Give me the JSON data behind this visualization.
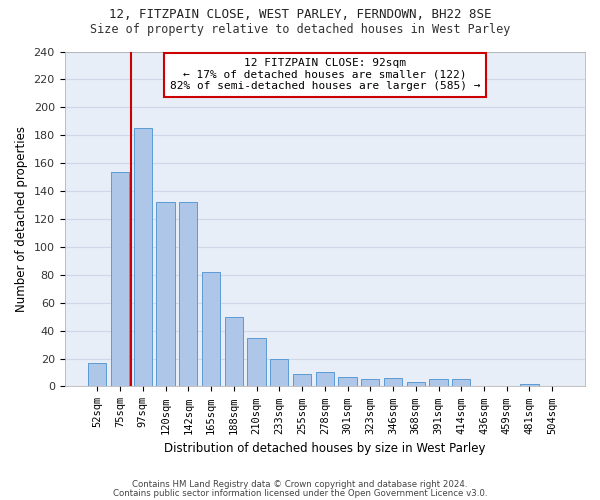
{
  "title1": "12, FITZPAIN CLOSE, WEST PARLEY, FERNDOWN, BH22 8SE",
  "title2": "Size of property relative to detached houses in West Parley",
  "xlabel": "Distribution of detached houses by size in West Parley",
  "ylabel": "Number of detached properties",
  "categories": [
    "52sqm",
    "75sqm",
    "97sqm",
    "120sqm",
    "142sqm",
    "165sqm",
    "188sqm",
    "210sqm",
    "233sqm",
    "255sqm",
    "278sqm",
    "301sqm",
    "323sqm",
    "346sqm",
    "368sqm",
    "391sqm",
    "414sqm",
    "436sqm",
    "459sqm",
    "481sqm",
    "504sqm"
  ],
  "values": [
    17,
    154,
    185,
    132,
    132,
    82,
    50,
    35,
    20,
    9,
    10,
    7,
    5,
    6,
    3,
    5,
    5,
    0,
    0,
    2,
    0
  ],
  "bar_color": "#aec6e8",
  "bar_edge_color": "#5b9bd5",
  "background_color": "#ffffff",
  "grid_color": "#d0d8e8",
  "annotation_line1": "12 FITZPAIN CLOSE: 92sqm",
  "annotation_line2": "← 17% of detached houses are smaller (122)",
  "annotation_line3": "82% of semi-detached houses are larger (585) →",
  "annotation_box_color": "#ffffff",
  "annotation_box_edge_color": "#cc0000",
  "vline_color": "#cc0000",
  "footer1": "Contains HM Land Registry data © Crown copyright and database right 2024.",
  "footer2": "Contains public sector information licensed under the Open Government Licence v3.0.",
  "ylim": [
    0,
    240
  ],
  "yticks": [
    0,
    20,
    40,
    60,
    80,
    100,
    120,
    140,
    160,
    180,
    200,
    220,
    240
  ]
}
